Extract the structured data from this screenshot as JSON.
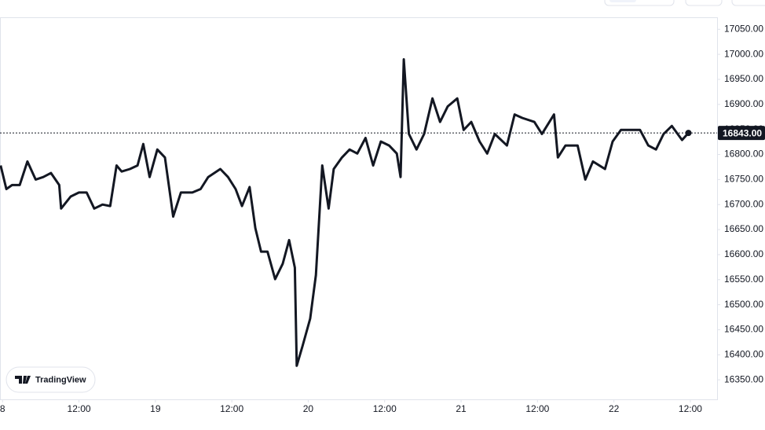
{
  "chart_data": {
    "type": "line",
    "watermark": "TradingView",
    "series": [
      {
        "color": "#131722",
        "x": [
          -0.3,
          0.6,
          1.5,
          2.7,
          3.9,
          5.2,
          6.4,
          7.6,
          8.9,
          9.2,
          10.7,
          12.0,
          13.2,
          14.4,
          15.7,
          16.9,
          17.9,
          18.7,
          20.0,
          21.2,
          22.1,
          23.1,
          24.3,
          25.5,
          26.8,
          28.0,
          29.8,
          31.1,
          32.3,
          34.2,
          35.4,
          36.6,
          37.6,
          38.8,
          39.7,
          40.6,
          41.6,
          42.8,
          44.0,
          45.0,
          45.9,
          46.2,
          47.1,
          48.3,
          49.2,
          50.2,
          51.2,
          52.0,
          53.3,
          54.5,
          55.7,
          57.0,
          58.2,
          59.4,
          60.7,
          61.9,
          62.5,
          63.0,
          63.8,
          65.0,
          66.2,
          67.5,
          68.7,
          69.9,
          71.4,
          72.4,
          73.6,
          74.9,
          76.1,
          77.3,
          79.2,
          80.4,
          81.6,
          83.5,
          84.7,
          86.6,
          87.2,
          88.4,
          90.3,
          91.5,
          92.7,
          94.6,
          95.8,
          97.1,
          98.3,
          100.1,
          101.4,
          102.6,
          103.8,
          105.1,
          106.7,
          107.7
        ],
        "values": [
          16778,
          16731,
          16739,
          16739,
          16786,
          16750,
          16755,
          16763,
          16739,
          16692,
          16716,
          16724,
          16724,
          16692,
          16700,
          16697,
          16778,
          16766,
          16771,
          16778,
          16821,
          16755,
          16810,
          16794,
          16676,
          16724,
          16724,
          16731,
          16755,
          16771,
          16755,
          16731,
          16697,
          16735,
          16653,
          16606,
          16606,
          16551,
          16582,
          16629,
          16574,
          16378,
          16417,
          16472,
          16559,
          16778,
          16692,
          16771,
          16794,
          16810,
          16802,
          16833,
          16778,
          16826,
          16818,
          16802,
          16755,
          16990,
          16841,
          16810,
          16841,
          16912,
          16865,
          16896,
          16912,
          16849,
          16865,
          16826,
          16802,
          16841,
          16818,
          16880,
          16873,
          16865,
          16841,
          16880,
          16794,
          16818,
          16818,
          16750,
          16786,
          16771,
          16826,
          16849,
          16849,
          16849,
          16818,
          16810,
          16841,
          16857,
          16829,
          16843
        ]
      }
    ],
    "price_line": {
      "value": 16843,
      "label": "16843.00"
    },
    "xlim": [
      -0.4,
      112.2
    ],
    "xticks": [
      {
        "value": 0,
        "label": "8"
      },
      {
        "value": 12,
        "label": "12:00"
      },
      {
        "value": 24,
        "label": "19"
      },
      {
        "value": 36,
        "label": "12:00"
      },
      {
        "value": 48,
        "label": "20"
      },
      {
        "value": 60,
        "label": "12:00"
      },
      {
        "value": 72,
        "label": "21"
      },
      {
        "value": 84,
        "label": "12:00"
      },
      {
        "value": 96,
        "label": "22"
      },
      {
        "value": 108,
        "label": "12:00"
      }
    ],
    "ylim": [
      16311,
      17074
    ],
    "yticks": [
      {
        "value": 16350,
        "label": "16350.00"
      },
      {
        "value": 16400,
        "label": "16400.00"
      },
      {
        "value": 16450,
        "label": "16450.00"
      },
      {
        "value": 16500,
        "label": "16500.00"
      },
      {
        "value": 16550,
        "label": "16550.00"
      },
      {
        "value": 16600,
        "label": "16600.00"
      },
      {
        "value": 16650,
        "label": "16650.00"
      },
      {
        "value": 16700,
        "label": "16700.00"
      },
      {
        "value": 16750,
        "label": "16750.00"
      },
      {
        "value": 16800,
        "label": "16800.00"
      },
      {
        "value": 16850,
        "label": "16850.00"
      },
      {
        "value": 16900,
        "label": "16900.00"
      },
      {
        "value": 16950,
        "label": "16950.00"
      },
      {
        "value": 17000,
        "label": "17000.00"
      },
      {
        "value": 17050,
        "label": "17050.00"
      }
    ]
  }
}
